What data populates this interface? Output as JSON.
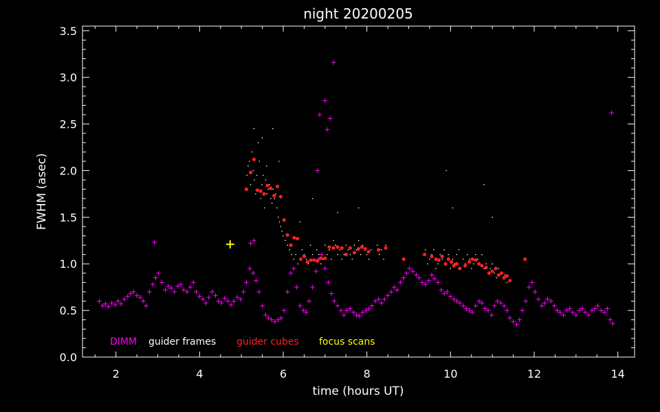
{
  "chart_data": {
    "type": "scatter",
    "title": "night 20200205",
    "xlabel": "time (hours UT)",
    "ylabel": "FWHM (asec)",
    "xlim": [
      1.2,
      14.4
    ],
    "ylim": [
      0.0,
      3.55
    ],
    "xticks": [
      2,
      4,
      6,
      8,
      10,
      12,
      14
    ],
    "xtick_labels": [
      "2",
      "4",
      "6",
      "8",
      "10",
      "12",
      "14"
    ],
    "yticks": [
      0.0,
      0.5,
      1.0,
      1.5,
      2.0,
      2.5,
      3.0,
      3.5
    ],
    "ytick_labels": [
      "0.0",
      "0.5",
      "1.0",
      "1.5",
      "2.0",
      "2.5",
      "3.0",
      "3.5"
    ],
    "grid": false,
    "legend_position": "bottom-left",
    "colors": {
      "background": "#000000",
      "axes": "#ffffff",
      "dimm": "#ff00ff",
      "guider_frames": "#ffffff",
      "guider_cubes": "#ff2020",
      "focus_scans": "#ffff00"
    },
    "series": [
      {
        "name": "DIMM",
        "marker": "plus",
        "color": "#ff00ff",
        "x": [
          1.6,
          1.68,
          1.75,
          1.82,
          1.9,
          1.98,
          2.05,
          2.12,
          2.2,
          2.28,
          2.35,
          2.42,
          2.5,
          2.58,
          2.65,
          2.72,
          2.8,
          2.88,
          2.95,
          3.02,
          3.1,
          3.18,
          3.25,
          3.32,
          3.4,
          3.48,
          3.55,
          3.62,
          3.7,
          3.78,
          3.85,
          3.92,
          4.0,
          4.08,
          4.15,
          4.22,
          4.3,
          4.38,
          4.45,
          4.52,
          4.6,
          4.68,
          4.75,
          4.82,
          4.9,
          4.98,
          5.05,
          5.12,
          5.2,
          5.28,
          5.35,
          5.42,
          5.5,
          5.58,
          5.65,
          5.72,
          5.8,
          5.88,
          5.95,
          6.02,
          6.1,
          6.18,
          6.25,
          6.32,
          6.4,
          6.48,
          6.55,
          6.62,
          6.7,
          6.78,
          6.85,
          6.92,
          7.0,
          7.08,
          7.15,
          7.22,
          7.3,
          7.38,
          7.45,
          7.52,
          7.6,
          7.68,
          7.75,
          7.82,
          7.9,
          7.98,
          8.05,
          8.12,
          8.2,
          8.28,
          8.35,
          8.42,
          8.5,
          8.58,
          8.65,
          8.72,
          8.8,
          8.88,
          8.95,
          9.02,
          9.1,
          9.18,
          9.25,
          9.32,
          9.4,
          9.48,
          9.55,
          9.62,
          9.7,
          9.78,
          9.85,
          9.92,
          10.0,
          10.08,
          10.15,
          10.22,
          10.3,
          10.38,
          10.45,
          10.52,
          10.6,
          10.68,
          10.75,
          10.82,
          10.9,
          10.98,
          11.05,
          11.12,
          11.2,
          11.28,
          11.35,
          11.42,
          11.5,
          11.58,
          11.65,
          11.72,
          11.8,
          11.88,
          11.95,
          12.02,
          12.1,
          12.18,
          12.25,
          12.32,
          12.4,
          12.48,
          12.55,
          12.62,
          12.7,
          12.78,
          12.85,
          12.92,
          13.0,
          13.08,
          13.15,
          13.22,
          13.3,
          13.38,
          13.45,
          13.52,
          13.6,
          13.68,
          13.75,
          13.82,
          13.88,
          2.92,
          5.22,
          5.3,
          6.82,
          6.87,
          7.0,
          7.05,
          7.12,
          7.2,
          13.85
        ],
        "y": [
          0.6,
          0.55,
          0.57,
          0.54,
          0.58,
          0.56,
          0.6,
          0.57,
          0.62,
          0.65,
          0.68,
          0.7,
          0.66,
          0.64,
          0.6,
          0.55,
          0.7,
          0.78,
          0.85,
          0.9,
          0.8,
          0.72,
          0.76,
          0.74,
          0.7,
          0.76,
          0.78,
          0.72,
          0.7,
          0.75,
          0.8,
          0.7,
          0.65,
          0.62,
          0.58,
          0.64,
          0.7,
          0.66,
          0.6,
          0.58,
          0.63,
          0.6,
          0.56,
          0.6,
          0.64,
          0.62,
          0.7,
          0.8,
          0.95,
          0.9,
          0.82,
          0.7,
          0.55,
          0.45,
          0.42,
          0.4,
          0.38,
          0.4,
          0.42,
          0.5,
          0.7,
          0.9,
          0.95,
          0.75,
          0.55,
          0.5,
          0.48,
          0.6,
          0.75,
          0.92,
          1.05,
          1.1,
          0.95,
          0.8,
          0.68,
          0.6,
          0.55,
          0.5,
          0.45,
          0.5,
          0.52,
          0.48,
          0.45,
          0.44,
          0.48,
          0.5,
          0.52,
          0.55,
          0.6,
          0.62,
          0.58,
          0.62,
          0.66,
          0.7,
          0.75,
          0.72,
          0.8,
          0.85,
          0.9,
          0.95,
          0.92,
          0.88,
          0.85,
          0.8,
          0.78,
          0.82,
          0.88,
          0.84,
          0.8,
          0.72,
          0.68,
          0.7,
          0.65,
          0.62,
          0.6,
          0.58,
          0.55,
          0.52,
          0.5,
          0.48,
          0.55,
          0.6,
          0.58,
          0.52,
          0.5,
          0.45,
          0.55,
          0.6,
          0.58,
          0.55,
          0.5,
          0.42,
          0.38,
          0.35,
          0.4,
          0.5,
          0.6,
          0.75,
          0.8,
          0.7,
          0.62,
          0.55,
          0.58,
          0.62,
          0.6,
          0.55,
          0.5,
          0.48,
          0.45,
          0.5,
          0.52,
          0.48,
          0.45,
          0.5,
          0.52,
          0.48,
          0.45,
          0.5,
          0.52,
          0.55,
          0.5,
          0.48,
          0.52,
          0.4,
          0.36,
          1.23,
          1.22,
          1.25,
          2.0,
          2.6,
          2.75,
          2.44,
          2.56,
          3.16,
          2.62
        ]
      },
      {
        "name": "guider frames",
        "marker": "dot",
        "color": "#ffffff",
        "x": [
          5.1,
          5.13,
          5.16,
          5.19,
          5.22,
          5.25,
          5.28,
          5.31,
          5.34,
          5.37,
          5.4,
          5.43,
          5.46,
          5.49,
          5.52,
          5.55,
          5.58,
          5.61,
          5.64,
          5.67,
          5.7,
          5.73,
          5.76,
          5.79,
          5.82,
          5.85,
          5.88,
          5.91,
          5.94,
          5.97,
          6.0,
          6.05,
          6.1,
          6.15,
          6.2,
          6.25,
          6.3,
          6.35,
          6.4,
          6.45,
          6.5,
          6.55,
          6.6,
          6.65,
          6.7,
          6.75,
          6.8,
          6.85,
          6.9,
          6.95,
          7.0,
          7.05,
          7.1,
          7.15,
          7.2,
          7.25,
          7.3,
          7.35,
          7.4,
          7.45,
          7.5,
          7.55,
          7.6,
          7.65,
          7.7,
          7.75,
          7.8,
          7.85,
          7.9,
          7.95,
          8.0,
          8.05,
          8.1,
          8.25,
          8.3,
          8.35,
          8.4,
          8.45,
          9.35,
          9.4,
          9.45,
          9.5,
          9.55,
          9.6,
          9.65,
          9.7,
          9.75,
          9.8,
          9.85,
          9.9,
          9.95,
          10.0,
          10.05,
          10.1,
          10.15,
          10.2,
          10.25,
          10.3,
          10.35,
          10.4,
          10.45,
          10.5,
          10.55,
          10.6,
          10.65,
          10.7,
          10.75,
          10.8,
          10.85,
          10.9,
          10.95,
          11.0,
          11.05,
          11.1,
          11.15,
          11.2,
          11.25,
          11.3,
          11.35,
          11.4,
          5.3,
          5.4,
          5.5,
          5.6,
          5.75,
          5.9,
          6.4,
          6.7,
          7.3,
          7.8,
          9.9,
          10.05,
          10.8,
          11.0
        ],
        "y": [
          1.8,
          1.95,
          2.05,
          2.1,
          1.85,
          2.2,
          2.0,
          1.9,
          1.75,
          1.95,
          1.8,
          2.1,
          1.7,
          1.85,
          1.95,
          1.6,
          1.9,
          1.75,
          1.8,
          1.85,
          1.7,
          1.65,
          1.8,
          1.7,
          1.75,
          1.6,
          1.5,
          1.45,
          1.4,
          1.35,
          1.3,
          1.25,
          1.2,
          1.15,
          1.1,
          1.05,
          1.1,
          1.0,
          1.05,
          1.15,
          1.1,
          1.05,
          1.0,
          1.2,
          1.1,
          1.05,
          1.15,
          1.1,
          1.0,
          1.05,
          1.2,
          1.1,
          1.15,
          1.05,
          1.25,
          1.2,
          1.1,
          1.15,
          1.05,
          1.1,
          1.2,
          1.15,
          1.1,
          1.05,
          1.2,
          1.15,
          1.25,
          1.1,
          1.2,
          1.15,
          1.1,
          1.05,
          1.15,
          1.2,
          1.1,
          1.15,
          1.05,
          1.2,
          1.1,
          1.15,
          1.0,
          1.05,
          1.1,
          1.15,
          0.95,
          1.0,
          1.1,
          1.05,
          1.15,
          1.0,
          1.1,
          0.95,
          1.05,
          1.0,
          1.1,
          1.15,
          0.95,
          1.05,
          1.0,
          1.1,
          1.05,
          0.95,
          1.0,
          1.1,
          1.05,
          1.0,
          1.1,
          0.95,
          1.0,
          0.9,
          0.95,
          1.0,
          0.9,
          0.85,
          0.95,
          0.9,
          0.85,
          0.88,
          0.8,
          0.82,
          2.45,
          2.3,
          2.35,
          2.05,
          2.45,
          2.1,
          1.45,
          1.7,
          1.55,
          1.6,
          2.0,
          1.6,
          1.85,
          1.5
        ]
      },
      {
        "name": "guider cubes",
        "marker": "dot",
        "color": "#ff2020",
        "x": [
          5.12,
          5.22,
          5.3,
          5.38,
          5.46,
          5.54,
          5.62,
          5.7,
          5.78,
          5.86,
          5.94,
          6.02,
          6.1,
          6.18,
          6.26,
          6.34,
          6.42,
          6.5,
          6.58,
          6.66,
          6.74,
          6.82,
          6.9,
          7.0,
          7.1,
          7.2,
          7.3,
          7.4,
          7.5,
          7.6,
          7.7,
          7.8,
          7.88,
          7.96,
          8.04,
          8.28,
          8.45,
          8.88,
          9.38,
          9.55,
          9.65,
          9.72,
          9.8,
          9.88,
          9.95,
          10.02,
          10.08,
          10.15,
          10.22,
          10.35,
          10.45,
          10.52,
          10.6,
          10.68,
          10.75,
          10.85,
          10.92,
          11.0,
          11.08,
          11.15,
          11.22,
          11.28,
          11.35,
          11.42,
          11.78
        ],
        "y": [
          1.8,
          1.98,
          2.12,
          1.79,
          1.78,
          1.75,
          1.84,
          1.81,
          1.73,
          1.83,
          1.72,
          1.47,
          1.31,
          1.2,
          1.28,
          1.27,
          1.05,
          1.08,
          1.02,
          1.04,
          1.04,
          1.03,
          1.06,
          1.06,
          1.18,
          1.17,
          1.18,
          1.17,
          1.1,
          1.17,
          1.12,
          1.16,
          1.18,
          1.16,
          1.13,
          1.15,
          1.17,
          1.05,
          1.1,
          1.08,
          1.05,
          1.04,
          1.08,
          1.0,
          1.05,
          1.02,
          0.98,
          1.0,
          0.95,
          0.98,
          1.02,
          1.05,
          1.04,
          1.0,
          0.98,
          0.96,
          0.9,
          0.92,
          0.95,
          0.88,
          0.9,
          0.85,
          0.87,
          0.82,
          1.05
        ]
      },
      {
        "name": "focus scans",
        "marker": "plus",
        "color": "#ffff00",
        "x": [
          4.73
        ],
        "y": [
          1.21
        ]
      }
    ]
  }
}
